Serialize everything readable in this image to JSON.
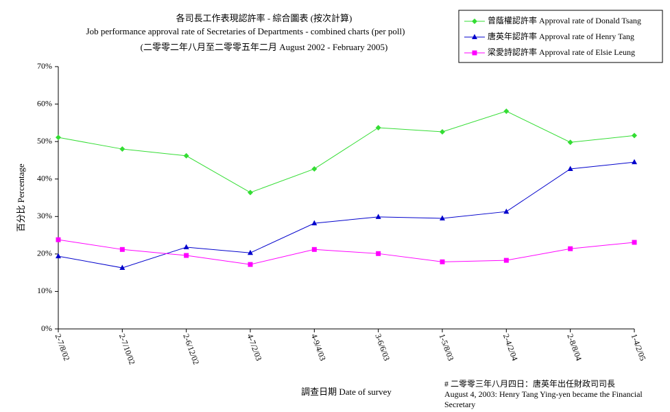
{
  "chart_data": {
    "type": "line",
    "title": "各司長工作表現認許率  -  綜合圖表   (按次計算)",
    "subtitle": "Job performance approval rate of Secretaries of Departments - combined charts (per poll)",
    "period": "(二零零二年八月至二零零五年二月 August 2002 - February 2005)",
    "x_label": "調查日期 Date of survey",
    "y_label": "百分比 Percentage",
    "note": [
      "# 二零零三年八月四日：唐英年出任財政司司長",
      "August 4, 2003: Henry Tang Ying-yen became the Financial",
      "Secretary"
    ],
    "categories": [
      "2-7/8/02",
      "2-7/10/02",
      "2-6/12/02",
      "4-7/2/03",
      "4-9/4/03",
      "3-6/6/03",
      "1-5/8/03",
      "2-4/2/04",
      "2-8/8/04",
      "1-4/2/05"
    ],
    "series": [
      {
        "name": "曾蔭權認許率 Approval rate of Donald Tsang",
        "color": "#33dd33",
        "marker": "diamond",
        "values": [
          51.1,
          48.0,
          46.2,
          36.4,
          42.7,
          53.7,
          52.6,
          58.1,
          49.8,
          51.6
        ]
      },
      {
        "name": "唐英年認許率 Approval rate of Henry Tang",
        "color": "#0000cc",
        "marker": "triangle",
        "values": [
          19.4,
          16.3,
          21.8,
          20.3,
          28.2,
          29.9,
          29.5,
          31.3,
          42.7,
          44.5
        ]
      },
      {
        "name": "梁愛詩認許率 Approval rate of Elsie Leung",
        "color": "#ff00ff",
        "marker": "square",
        "values": [
          23.8,
          21.2,
          19.6,
          17.2,
          21.2,
          20.1,
          17.9,
          18.3,
          21.4,
          23.1
        ]
      }
    ],
    "ylim": [
      0,
      70
    ],
    "yticks": [
      {
        "value": 0,
        "label": "0%"
      },
      {
        "value": 10,
        "label": "10%"
      },
      {
        "value": 20,
        "label": "20%"
      },
      {
        "value": 30,
        "label": "30%"
      },
      {
        "value": 40,
        "label": "40%"
      },
      {
        "value": 50,
        "label": "50%"
      },
      {
        "value": 60,
        "label": "60%"
      },
      {
        "value": 70,
        "label": "70%"
      }
    ],
    "grid": false,
    "legend": "top-right"
  }
}
